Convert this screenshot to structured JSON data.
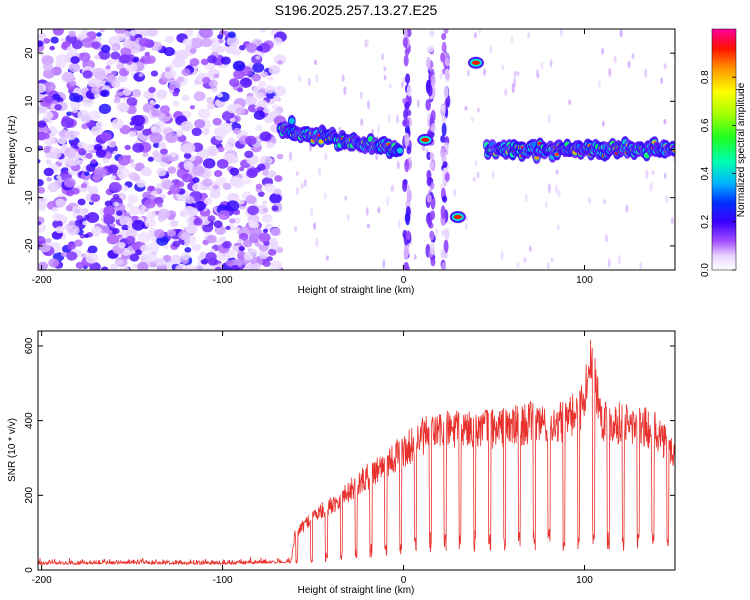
{
  "title": "S196.2025.257.13.27.E25",
  "colors": {
    "snr_line": "#e8302c",
    "axis": "#000000",
    "background": "#ffffff"
  },
  "chart_data": [
    {
      "type": "heatmap",
      "name": "spectrogram",
      "xlabel": "Height of straight line (km)",
      "ylabel": "Frequency (Hz)",
      "xlim": [
        -202,
        150
      ],
      "ylim": [
        -25,
        25
      ],
      "xticks": [
        -200,
        -100,
        0,
        100
      ],
      "xtick_labels": [
        "-200",
        "-100",
        "0",
        "100"
      ],
      "yticks": [
        -20,
        -10,
        0,
        10,
        20
      ],
      "ytick_labels": [
        "-20",
        "-10",
        "0",
        "10",
        "20"
      ],
      "colorbar": {
        "label": "Normalized spectral amplitude",
        "range": [
          0,
          1
        ],
        "ticks": [
          0.0,
          0.2,
          0.4,
          0.6,
          0.8
        ],
        "tick_labels": [
          "0.0",
          "0.2",
          "0.4",
          "0.6",
          "0.8"
        ],
        "colormap": "rainbow (white/violet at 0 to red/magenta at 1)"
      },
      "features": {
        "noise_region_km": [
          -202,
          -68
        ],
        "ridge_segments": [
          {
            "x": [
              -68,
              -2
            ],
            "freq_hz": [
              4,
              0
            ],
            "description": "main carrier line, slowly drifting to 0 Hz"
          },
          {
            "x": [
              46,
              150
            ],
            "freq_hz": [
              0,
              0
            ],
            "description": "carrier line around 0 Hz"
          }
        ],
        "isolated_blobs": [
          {
            "x": 40,
            "freq_hz": 18
          },
          {
            "x": 30,
            "freq_hz": -14
          },
          {
            "x": 12,
            "freq_hz": 2
          }
        ],
        "vertical_streaks_km": [
          2,
          15,
          23
        ]
      }
    },
    {
      "type": "line",
      "name": "snr",
      "xlabel": "Height of straight line (km)",
      "ylabel": "SNR (10 * v/v)",
      "xlim": [
        -202,
        150
      ],
      "ylim": [
        0,
        640
      ],
      "xticks": [
        -200,
        -100,
        0,
        100
      ],
      "xtick_labels": [
        "-200",
        "-100",
        "0",
        "100"
      ],
      "yticks": [
        0,
        200,
        400,
        600
      ],
      "ytick_labels": [
        "0",
        "200",
        "400",
        "600"
      ],
      "series": [
        {
          "name": "SNR",
          "description": "noisy trace; ~20 baseline for x<-60, rising with periodic dips (period ~8 km)",
          "x": [
            -202,
            -150,
            -100,
            -62,
            -60,
            -50,
            -40,
            -30,
            -20,
            -10,
            0,
            10,
            20,
            30,
            40,
            50,
            60,
            70,
            80,
            90,
            100,
            103,
            110,
            120,
            130,
            140,
            150
          ],
          "values": [
            20,
            22,
            20,
            25,
            100,
            150,
            180,
            220,
            260,
            300,
            330,
            370,
            390,
            390,
            400,
            395,
            400,
            410,
            410,
            410,
            470,
            600,
            420,
            410,
            400,
            390,
            320
          ],
          "peak_max": 640,
          "dip_period_km": 8.2,
          "dip_depth_factor": 0.12
        }
      ]
    }
  ]
}
